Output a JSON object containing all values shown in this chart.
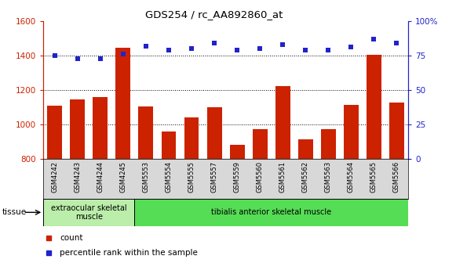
{
  "title": "GDS254 / rc_AA892860_at",
  "categories": [
    "GSM4242",
    "GSM4243",
    "GSM4244",
    "GSM4245",
    "GSM5553",
    "GSM5554",
    "GSM5555",
    "GSM5557",
    "GSM5559",
    "GSM5560",
    "GSM5561",
    "GSM5562",
    "GSM5563",
    "GSM5564",
    "GSM5565",
    "GSM5566"
  ],
  "counts": [
    1110,
    1145,
    1160,
    1445,
    1105,
    960,
    1040,
    1100,
    885,
    975,
    1225,
    915,
    975,
    1115,
    1405,
    1130
  ],
  "percentiles": [
    75,
    73,
    73,
    76,
    82,
    79,
    80,
    84,
    79,
    80,
    83,
    79,
    79,
    81,
    87,
    84
  ],
  "ylim_left": [
    800,
    1600
  ],
  "ylim_right": [
    0,
    100
  ],
  "yticks_left": [
    800,
    1000,
    1200,
    1400,
    1600
  ],
  "yticks_right": [
    0,
    25,
    50,
    75,
    100
  ],
  "bar_color": "#cc2200",
  "dot_color": "#2222cc",
  "xlabels_bg": "#d8d8d8",
  "tissue_colors": [
    "#bbeeaa",
    "#55dd55"
  ],
  "tissue_labels": [
    "extraocular skeletal\nmuscle",
    "tibialis anterior skeletal muscle"
  ],
  "tissue_starts": [
    0,
    4
  ],
  "tissue_ends": [
    4,
    16
  ],
  "legend_labels": [
    "count",
    "percentile rank within the sample"
  ],
  "legend_colors": [
    "#cc2200",
    "#2222cc"
  ],
  "tissue_label": "tissue"
}
